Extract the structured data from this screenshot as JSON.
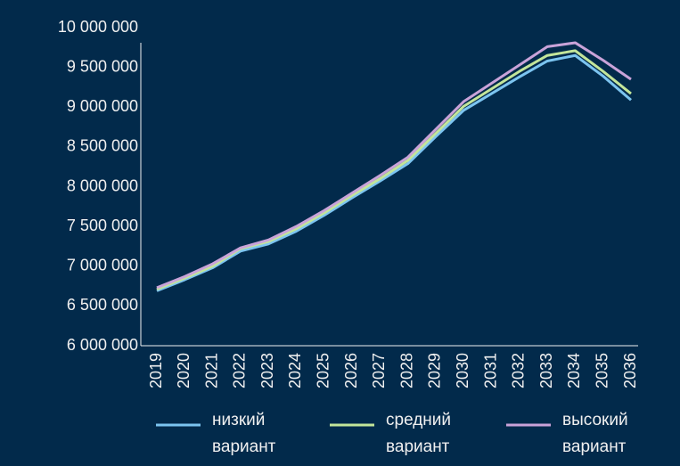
{
  "chart_data": {
    "type": "line",
    "categories": [
      "2019",
      "2020",
      "2021",
      "2022",
      "2023",
      "2024",
      "2025",
      "2026",
      "2027",
      "2028",
      "2029",
      "2030",
      "2031",
      "2032",
      "2033",
      "2034",
      "2035",
      "2036"
    ],
    "series": [
      {
        "name": "низкий вариант",
        "color": "#7cc4f0",
        "values": [
          6690000,
          6830000,
          6980000,
          7190000,
          7280000,
          7440000,
          7640000,
          7860000,
          8070000,
          8290000,
          8630000,
          8960000,
          9170000,
          9380000,
          9580000,
          9650000,
          9390000,
          9090000
        ]
      },
      {
        "name": "средний вариант",
        "color": "#c3e59a",
        "values": [
          6710000,
          6850000,
          7000000,
          7220000,
          7310000,
          7470000,
          7670000,
          7890000,
          8100000,
          8330000,
          8670000,
          9010000,
          9230000,
          9450000,
          9650000,
          9710000,
          9450000,
          9170000
        ]
      },
      {
        "name": "высокий вариант",
        "color": "#c9a3d9",
        "values": [
          6730000,
          6870000,
          7030000,
          7230000,
          7330000,
          7500000,
          7700000,
          7920000,
          8140000,
          8370000,
          8720000,
          9070000,
          9300000,
          9530000,
          9760000,
          9810000,
          9590000,
          9350000
        ]
      }
    ],
    "ylim": [
      6000000,
      10000000
    ],
    "yticks": [
      {
        "value": 6000000,
        "label": "6 000 000"
      },
      {
        "value": 6500000,
        "label": "6 500 000"
      },
      {
        "value": 7000000,
        "label": "7 000 000"
      },
      {
        "value": 7500000,
        "label": "7 500 000"
      },
      {
        "value": 8000000,
        "label": "8 000 000"
      },
      {
        "value": 8500000,
        "label": "8 500 000"
      },
      {
        "value": 9000000,
        "label": "9 000 000"
      },
      {
        "value": 9500000,
        "label": "9 500 000"
      },
      {
        "value": 10000000,
        "label": "10 000 000"
      }
    ],
    "grid": false
  }
}
